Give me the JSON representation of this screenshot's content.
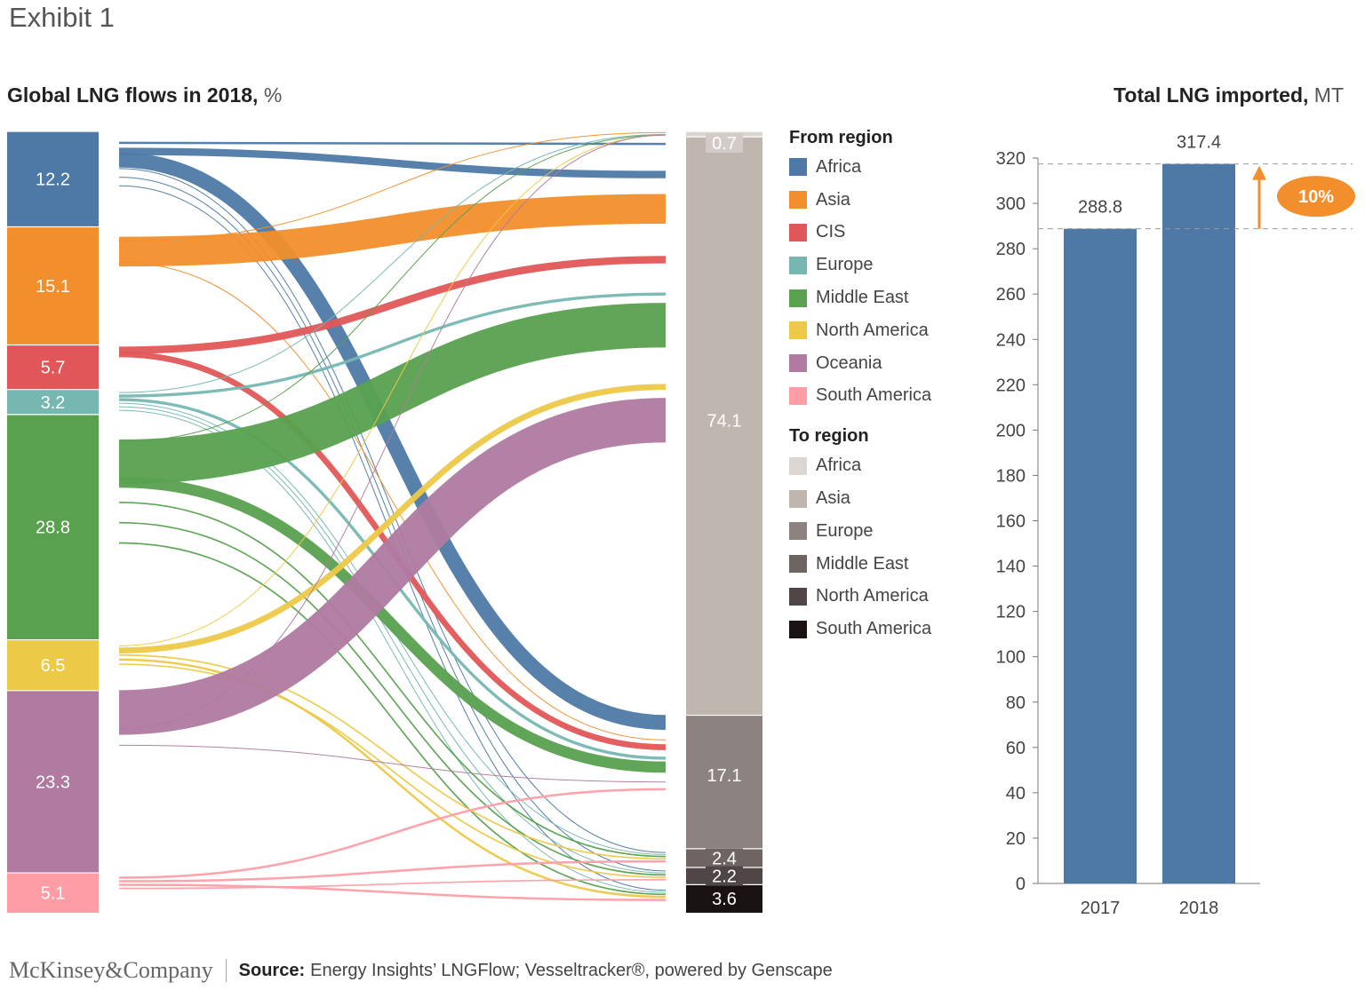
{
  "header": {
    "exhibit": "Exhibit 1",
    "left_title": "Global LNG flows in 2018,",
    "left_unit": "%",
    "right_title": "Total LNG imported,",
    "right_unit": "MT"
  },
  "legend": {
    "from_heading": "From region",
    "to_heading": "To region",
    "from": [
      {
        "label": "Africa",
        "color": "#4e79a7"
      },
      {
        "label": "Asia",
        "color": "#f28e2b"
      },
      {
        "label": "CIS",
        "color": "#e15759"
      },
      {
        "label": "Europe",
        "color": "#76b7b2"
      },
      {
        "label": "Middle East",
        "color": "#59a14f"
      },
      {
        "label": "North America",
        "color": "#edc948"
      },
      {
        "label": "Oceania",
        "color": "#b07aa1"
      },
      {
        "label": "South America",
        "color": "#ff9da7"
      }
    ],
    "to": [
      {
        "label": "Africa",
        "color": "#dcd6d3"
      },
      {
        "label": "Asia",
        "color": "#bfb6b0"
      },
      {
        "label": "Europe",
        "color": "#8c8380"
      },
      {
        "label": "Middle East",
        "color": "#6e6563"
      },
      {
        "label": "North America",
        "color": "#4f4645"
      },
      {
        "label": "South America",
        "color": "#1a1212"
      }
    ]
  },
  "chart_data": [
    {
      "type": "sankey",
      "title": "Global LNG flows in 2018, %",
      "sources": [
        {
          "name": "Africa",
          "value": 12.2,
          "label": "12.2",
          "color": "#4e79a7"
        },
        {
          "name": "Asia",
          "value": 15.1,
          "label": "15.1",
          "color": "#f28e2b"
        },
        {
          "name": "CIS",
          "value": 5.7,
          "label": "5.7",
          "color": "#e15759"
        },
        {
          "name": "Europe",
          "value": 3.2,
          "label": "3.2",
          "color": "#76b7b2"
        },
        {
          "name": "Middle East",
          "value": 28.8,
          "label": "28.8",
          "color": "#59a14f"
        },
        {
          "name": "North America",
          "value": 6.5,
          "label": "6.5",
          "color": "#edc948"
        },
        {
          "name": "Oceania",
          "value": 23.3,
          "label": "23.3",
          "color": "#b07aa1"
        },
        {
          "name": "South America",
          "value": 5.1,
          "label": "5.1",
          "color": "#ff9da7"
        }
      ],
      "targets": [
        {
          "name": "Africa",
          "value": 0.7,
          "label": "0.7",
          "color": "#dcd6d3"
        },
        {
          "name": "Asia",
          "value": 74.1,
          "label": "74.1",
          "color": "#bfb6b0"
        },
        {
          "name": "Europe",
          "value": 17.1,
          "label": "17.1",
          "color": "#8c8380"
        },
        {
          "name": "Middle East",
          "value": 2.4,
          "label": "2.4",
          "color": "#6e6563"
        },
        {
          "name": "North America",
          "value": 2.2,
          "label": "2.2",
          "color": "#4f4645"
        },
        {
          "name": "South America",
          "value": 3.6,
          "label": "3.6",
          "color": "#1a1212"
        }
      ],
      "flows": [
        {
          "from": "Africa",
          "to": "Asia",
          "value": 0.3
        },
        {
          "from": "Africa",
          "to": "Asia",
          "value": 1.0
        },
        {
          "from": "Africa",
          "to": "Europe",
          "value": 2.0
        },
        {
          "from": "Africa",
          "to": "Middle East",
          "value": 0.12
        },
        {
          "from": "Africa",
          "to": "North America",
          "value": 0.12
        },
        {
          "from": "Africa",
          "to": "South America",
          "value": 0.12
        },
        {
          "from": "Asia",
          "to": "Africa",
          "value": 0.1
        },
        {
          "from": "Asia",
          "to": "Asia",
          "value": 4.0
        },
        {
          "from": "Asia",
          "to": "Europe",
          "value": 0.1
        },
        {
          "from": "CIS",
          "to": "Asia",
          "value": 1.0
        },
        {
          "from": "CIS",
          "to": "Europe",
          "value": 0.8
        },
        {
          "from": "Europe",
          "to": "Africa",
          "value": 0.1
        },
        {
          "from": "Europe",
          "to": "Asia",
          "value": 0.4
        },
        {
          "from": "Europe",
          "to": "Europe",
          "value": 0.4
        },
        {
          "from": "Europe",
          "to": "Middle East",
          "value": 0.12
        },
        {
          "from": "Europe",
          "to": "North America",
          "value": 0.12
        },
        {
          "from": "Europe",
          "to": "South America",
          "value": 0.12
        },
        {
          "from": "Middle East",
          "to": "Africa",
          "value": 0.1
        },
        {
          "from": "Middle East",
          "to": "Asia",
          "value": 6.0
        },
        {
          "from": "Middle East",
          "to": "Europe",
          "value": 1.5
        },
        {
          "from": "Middle East",
          "to": "Middle East",
          "value": 0.2
        },
        {
          "from": "Middle East",
          "to": "North America",
          "value": 0.2
        },
        {
          "from": "Middle East",
          "to": "South America",
          "value": 0.2
        },
        {
          "from": "North America",
          "to": "Africa",
          "value": 0.1
        },
        {
          "from": "North America",
          "to": "Asia",
          "value": 0.8
        },
        {
          "from": "North America",
          "to": "Middle East",
          "value": 0.2
        },
        {
          "from": "North America",
          "to": "South America",
          "value": 0.3
        },
        {
          "from": "North America",
          "to": "North America",
          "value": 0.2
        },
        {
          "from": "Oceania",
          "to": "Asia",
          "value": 6.0
        },
        {
          "from": "Oceania",
          "to": "Africa",
          "value": 0.1
        },
        {
          "from": "Oceania",
          "to": "Europe",
          "value": 0.1
        },
        {
          "from": "South America",
          "to": "Europe",
          "value": 0.3
        },
        {
          "from": "South America",
          "to": "Middle East",
          "value": 0.3
        },
        {
          "from": "South America",
          "to": "South America",
          "value": 0.3
        },
        {
          "from": "South America",
          "to": "North America",
          "value": 0.2
        }
      ]
    },
    {
      "type": "bar",
      "title": "Total LNG imported, MT",
      "categories": [
        "2017",
        "2018"
      ],
      "values": [
        288.8,
        317.4
      ],
      "value_labels": [
        "288.8",
        "317.4"
      ],
      "ylim": [
        0,
        320
      ],
      "yticks": [
        0,
        20,
        40,
        60,
        80,
        100,
        120,
        140,
        160,
        180,
        200,
        220,
        240,
        260,
        280,
        300,
        320
      ],
      "bar_color": "#4e79a7",
      "change_label": "10%",
      "change_color": "#f28e2b"
    }
  ],
  "footer": {
    "logo": "McKinsey&Company",
    "source_label": "Source:",
    "source_text": "Energy Insights’ LNGFlow; Vesseltracker®, powered by Genscape"
  }
}
